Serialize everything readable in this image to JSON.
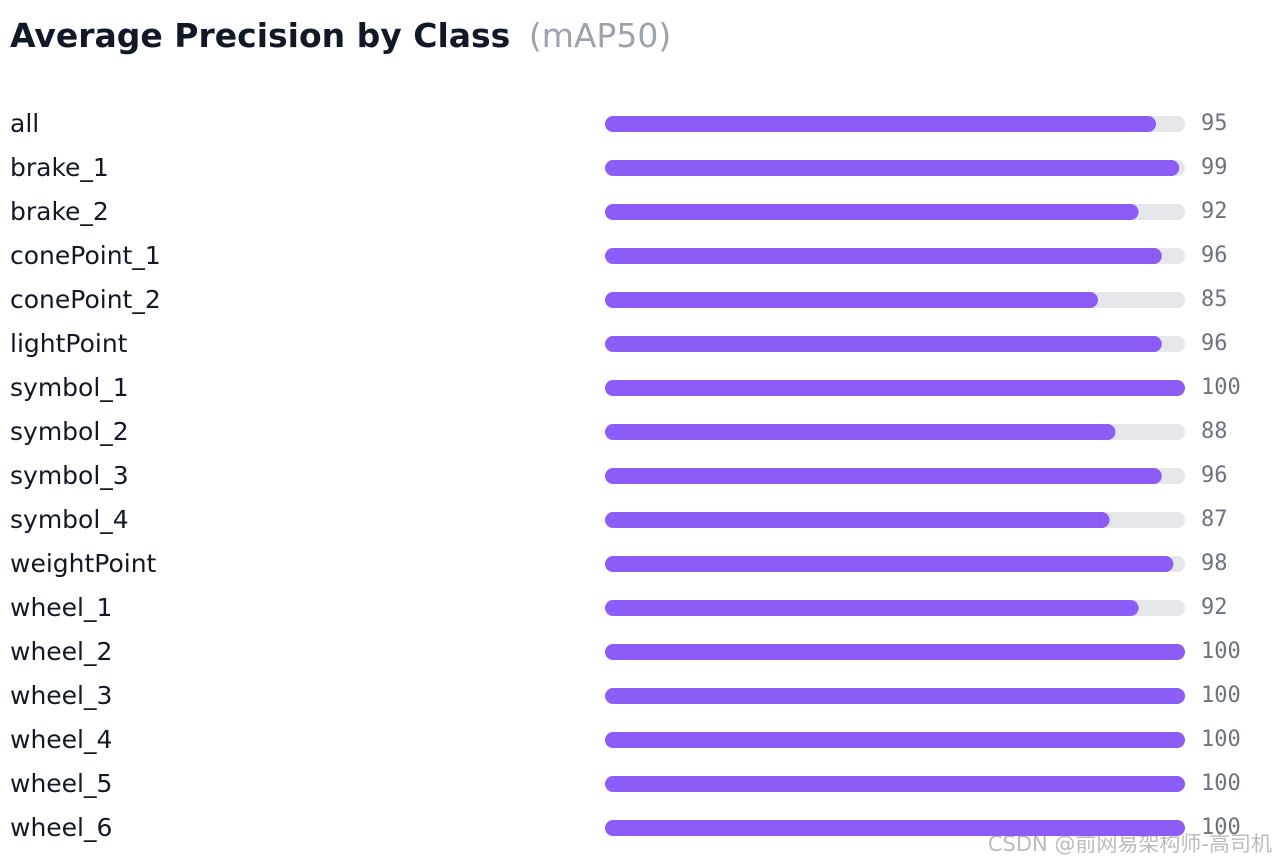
{
  "chart_data": {
    "type": "bar",
    "orientation": "horizontal",
    "title": "Average Precision by Class",
    "subtitle": "(mAP50)",
    "categories": [
      "all",
      "brake_1",
      "brake_2",
      "conePoint_1",
      "conePoint_2",
      "lightPoint",
      "symbol_1",
      "symbol_2",
      "symbol_3",
      "symbol_4",
      "weightPoint",
      "wheel_1",
      "wheel_2",
      "wheel_3",
      "wheel_4",
      "wheel_5",
      "wheel_6"
    ],
    "values": [
      95,
      99,
      92,
      96,
      85,
      96,
      100,
      88,
      96,
      87,
      98,
      92,
      100,
      100,
      100,
      100,
      100
    ],
    "color": "#8b5cf6",
    "track_color": "#e5e7eb",
    "xlim": [
      0,
      100
    ]
  },
  "watermark": "CSDN @前网易架构师-高司机"
}
